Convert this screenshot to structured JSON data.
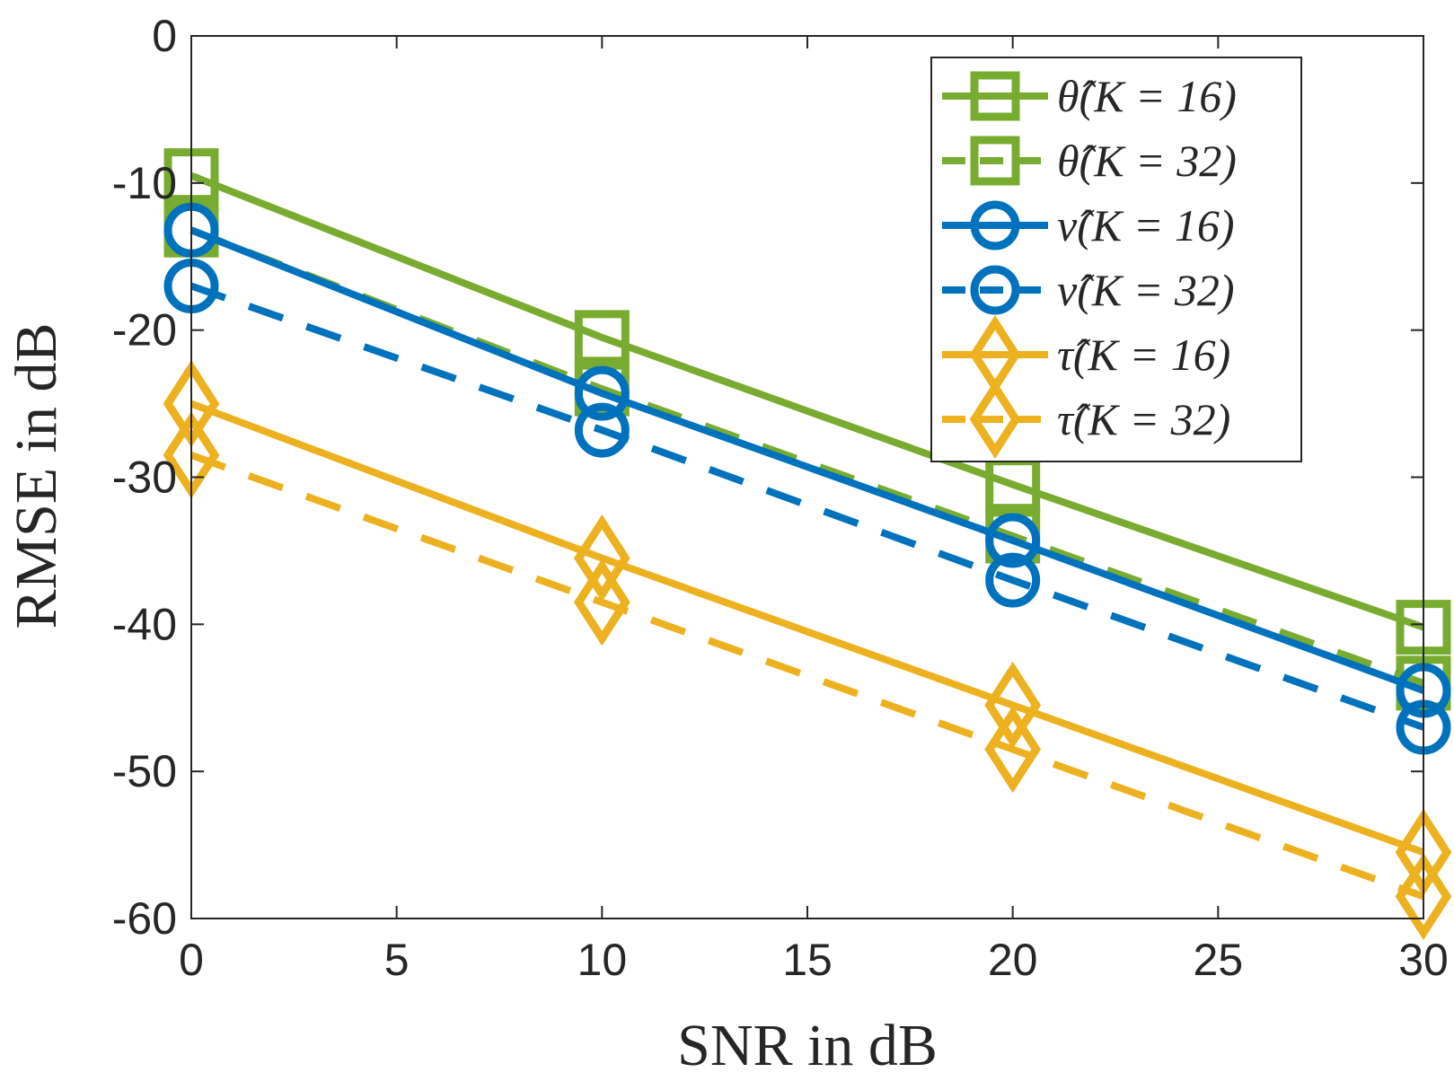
{
  "chart_data": {
    "type": "line",
    "title": "",
    "xlabel": "SNR in dB",
    "ylabel": "RMSE in dB",
    "x": [
      0,
      10,
      20,
      30
    ],
    "xlim": [
      0,
      30
    ],
    "ylim": [
      -60,
      0
    ],
    "xticks": [
      0,
      5,
      10,
      15,
      20,
      25,
      30
    ],
    "yticks": [
      0,
      -10,
      -20,
      -30,
      -40,
      -50,
      -60
    ],
    "xtick_labels": [
      "0",
      "5",
      "10",
      "15",
      "20",
      "25",
      "30"
    ],
    "ytick_labels": [
      "0",
      "-10",
      "-20",
      "-30",
      "-40",
      "-50",
      "-60"
    ],
    "grid": false,
    "legend_position": "top-right",
    "series": [
      {
        "name": "θ̂(K = 16)",
        "values": [
          -9.5,
          -20.5,
          -30.5,
          -40.2
        ],
        "color": "#77AC30",
        "dash": "solid",
        "marker": "square"
      },
      {
        "name": "θ̂(K = 32)",
        "values": [
          -13.2,
          -24.0,
          -34.0,
          -44.0
        ],
        "color": "#77AC30",
        "dash": "dashed",
        "marker": "square"
      },
      {
        "name": "ν̂(K = 16)",
        "values": [
          -13.2,
          -24.3,
          -34.3,
          -44.5
        ],
        "color": "#0072BD",
        "dash": "solid",
        "marker": "circle"
      },
      {
        "name": "ν̂(K = 32)",
        "values": [
          -17.0,
          -26.8,
          -37.0,
          -47.0
        ],
        "color": "#0072BD",
        "dash": "dashed",
        "marker": "circle"
      },
      {
        "name": "τ̂(K = 16)",
        "values": [
          -25.0,
          -35.5,
          -45.5,
          -55.5
        ],
        "color": "#EDB120",
        "dash": "solid",
        "marker": "diamond"
      },
      {
        "name": "τ̂(K = 32)",
        "values": [
          -28.5,
          -38.5,
          -48.5,
          -58.5
        ],
        "color": "#EDB120",
        "dash": "dashed",
        "marker": "diamond"
      }
    ]
  }
}
